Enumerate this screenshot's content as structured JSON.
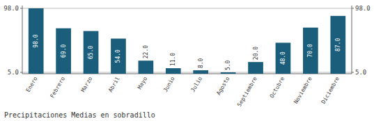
{
  "chart_data": {
    "type": "bar",
    "title": "Precipitaciones Medias en sobradillo",
    "categories": [
      "Enero",
      "Febrero",
      "Marzo",
      "Abril",
      "Mayo",
      "Junio",
      "Julio",
      "Agosto",
      "Septiembre",
      "Octubre",
      "Noviembre",
      "Diciembre"
    ],
    "values": [
      98.0,
      69.0,
      65.0,
      54.0,
      22.0,
      11.0,
      8.0,
      5.0,
      20.0,
      48.0,
      70.0,
      87.0
    ],
    "value_labels": [
      "98.0",
      "69.0",
      "65.0",
      "54.0",
      "22.0",
      "11.0",
      "8.0",
      "5.0",
      "20.0",
      "48.0",
      "70.0",
      "87.0"
    ],
    "data_labels": true,
    "color": "#1b5e7b",
    "ylim": [
      3,
      102
    ],
    "yticks": [
      {
        "value": 5,
        "label": "5.0"
      },
      {
        "value": 98,
        "label": "98.0"
      }
    ],
    "y2lim": [
      3,
      102
    ],
    "y2ticks": [
      {
        "value": 5,
        "label": "5.0"
      },
      {
        "value": 98,
        "label": "98.0"
      }
    ],
    "grid": true
  }
}
